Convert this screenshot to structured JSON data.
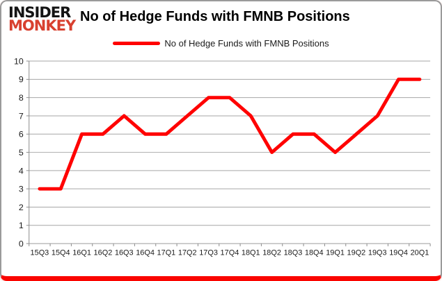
{
  "brand": {
    "line1": "INSIDER",
    "line2": "MONKEY"
  },
  "header": {
    "title": "No of Hedge Funds with FMNB Positions"
  },
  "legend": {
    "label": "No of Hedge Funds with FMNB Positions"
  },
  "colors": {
    "series": "#ff0000",
    "gridline": "#a6a6a6",
    "axis": "#8c8c8c",
    "tick_text": "#1a1a1a",
    "brand_primary": "#141414",
    "brand_accent": "#d8402f",
    "card_border_bottom": "#fa0400"
  },
  "chart_data": {
    "type": "line",
    "title": "No of Hedge Funds with FMNB Positions",
    "categories": [
      "15Q3",
      "15Q4",
      "16Q1",
      "16Q2",
      "16Q3",
      "16Q4",
      "17Q1",
      "17Q2",
      "17Q3",
      "17Q4",
      "18Q1",
      "18Q2",
      "18Q3",
      "18Q4",
      "19Q1",
      "19Q2",
      "19Q3",
      "19Q4",
      "20Q1"
    ],
    "series": [
      {
        "name": "No of Hedge Funds with FMNB Positions",
        "color": "#ff0000",
        "values": [
          3,
          3,
          6,
          6,
          7,
          6,
          6,
          7,
          8,
          8,
          7,
          5,
          6,
          6,
          5,
          6,
          7,
          9,
          9
        ]
      }
    ],
    "xlabel": "",
    "ylabel": "",
    "ylim": [
      0,
      10
    ],
    "ytick_step": 1,
    "grid": true,
    "legend_position": "top"
  }
}
